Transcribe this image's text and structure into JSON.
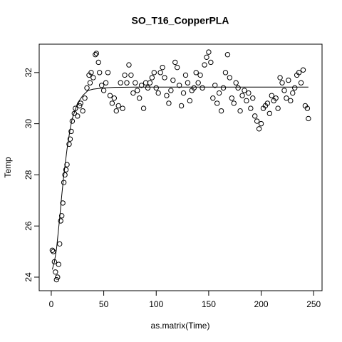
{
  "chart_data": {
    "type": "scatter",
    "title": "SO_T16_CopperPLA",
    "x_label": "as.matrix(Time)",
    "y_label": "Temp",
    "xlim": [
      -11.5,
      258
    ],
    "ylim": [
      23.47,
      33.11
    ],
    "xticks": [
      0,
      50,
      100,
      150,
      200,
      250
    ],
    "yticks": [
      24,
      26,
      28,
      30,
      32
    ],
    "series": [
      {
        "type": "scatter",
        "color": "#000000",
        "x": [
          1,
          2,
          3,
          4,
          5,
          6,
          7,
          8,
          9,
          10,
          11,
          12,
          13,
          14,
          15,
          17,
          18,
          19,
          20,
          22,
          23,
          25,
          27,
          28,
          30,
          32,
          34,
          36,
          37,
          38,
          40,
          42,
          43,
          45,
          46,
          48,
          50,
          52,
          54,
          56,
          58,
          60,
          62,
          64,
          66,
          68,
          70,
          72,
          74,
          76,
          78,
          80,
          82,
          84,
          86,
          88,
          90,
          92,
          94,
          96,
          98,
          100,
          102,
          104,
          106,
          108,
          110,
          112,
          114,
          116,
          118,
          120,
          122,
          124,
          126,
          128,
          130,
          132,
          134,
          136,
          138,
          140,
          142,
          144,
          146,
          148,
          150,
          152,
          154,
          156,
          158,
          160,
          162,
          164,
          166,
          168,
          170,
          172,
          174,
          176,
          178,
          180,
          182,
          184,
          186,
          188,
          190,
          192,
          194,
          196,
          198,
          200,
          202,
          204,
          206,
          208,
          210,
          212,
          214,
          216,
          218,
          220,
          222,
          224,
          226,
          228,
          230,
          232,
          234,
          236,
          238,
          240,
          242,
          244,
          245
        ],
        "values": [
          25.05,
          25.0,
          24.6,
          24.2,
          23.9,
          24.0,
          24.5,
          25.3,
          26.2,
          26.4,
          26.9,
          27.7,
          28.0,
          28.2,
          28.4,
          29.2,
          29.4,
          29.7,
          30.1,
          30.4,
          30.6,
          30.3,
          30.7,
          30.8,
          30.5,
          31.0,
          31.4,
          31.9,
          31.6,
          32.0,
          31.8,
          32.7,
          32.75,
          32.4,
          32.0,
          31.5,
          31.3,
          31.6,
          32.0,
          31.1,
          30.8,
          31.0,
          30.5,
          30.7,
          31.6,
          30.6,
          31.9,
          31.6,
          32.3,
          31.9,
          31.2,
          31.6,
          31.3,
          31.0,
          31.5,
          30.6,
          31.6,
          31.4,
          31.6,
          31.8,
          32.0,
          31.4,
          31.2,
          32.0,
          32.2,
          31.8,
          31.1,
          30.8,
          31.3,
          31.7,
          32.4,
          32.2,
          31.5,
          30.7,
          31.2,
          31.9,
          31.6,
          30.9,
          31.3,
          31.4,
          32.0,
          31.6,
          31.9,
          31.4,
          32.3,
          32.6,
          32.8,
          32.4,
          31.0,
          31.5,
          30.8,
          31.2,
          30.5,
          31.4,
          32.0,
          32.7,
          31.8,
          31.0,
          30.8,
          31.6,
          31.4,
          30.5,
          31.1,
          31.3,
          30.9,
          31.2,
          30.6,
          31.0,
          30.3,
          30.1,
          29.8,
          30.0,
          30.6,
          30.7,
          30.8,
          30.4,
          31.1,
          30.9,
          31.0,
          30.6,
          31.8,
          31.6,
          31.3,
          31.0,
          31.7,
          30.9,
          31.2,
          31.4,
          31.9,
          32.0,
          31.6,
          32.1,
          30.7,
          30.6,
          30.2
        ]
      },
      {
        "type": "line",
        "color": "#000000",
        "x": [
          1,
          3,
          5,
          8,
          10,
          12,
          15,
          18,
          20,
          25,
          30,
          35,
          40,
          50,
          60,
          80,
          100,
          150,
          200,
          245
        ],
        "values": [
          24.3,
          24.6,
          25.1,
          26.3,
          27.2,
          28.0,
          29.0,
          29.8,
          30.2,
          30.8,
          31.1,
          31.3,
          31.35,
          31.4,
          31.42,
          31.43,
          31.43,
          31.43,
          31.43,
          31.43
        ]
      }
    ]
  }
}
